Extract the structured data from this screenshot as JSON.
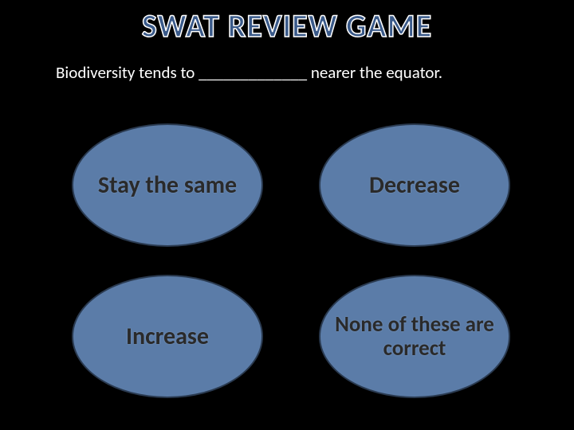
{
  "title": "SWAT REVIEW GAME",
  "question": "Biodiversity tends to _____________ nearer the equator.",
  "answers": {
    "a1": "Stay the same",
    "a2": "Decrease",
    "a3": "Increase",
    "a4": "None of these are correct"
  },
  "colors": {
    "background": "#000000",
    "title_fill": "#3a5a8a",
    "title_stroke": "#ffffff",
    "question_text": "#ffffff",
    "answer_fill": "#5b7ca8",
    "answer_border": "#2a3a50",
    "answer_text": "#2a2a2a"
  },
  "layout": {
    "slide_width": 720,
    "slide_height": 540,
    "title_fontsize": 40,
    "question_fontsize": 21,
    "answer_fontsize": 30,
    "answer_ellipse_w": 240,
    "answer_ellipse_h": 155
  }
}
